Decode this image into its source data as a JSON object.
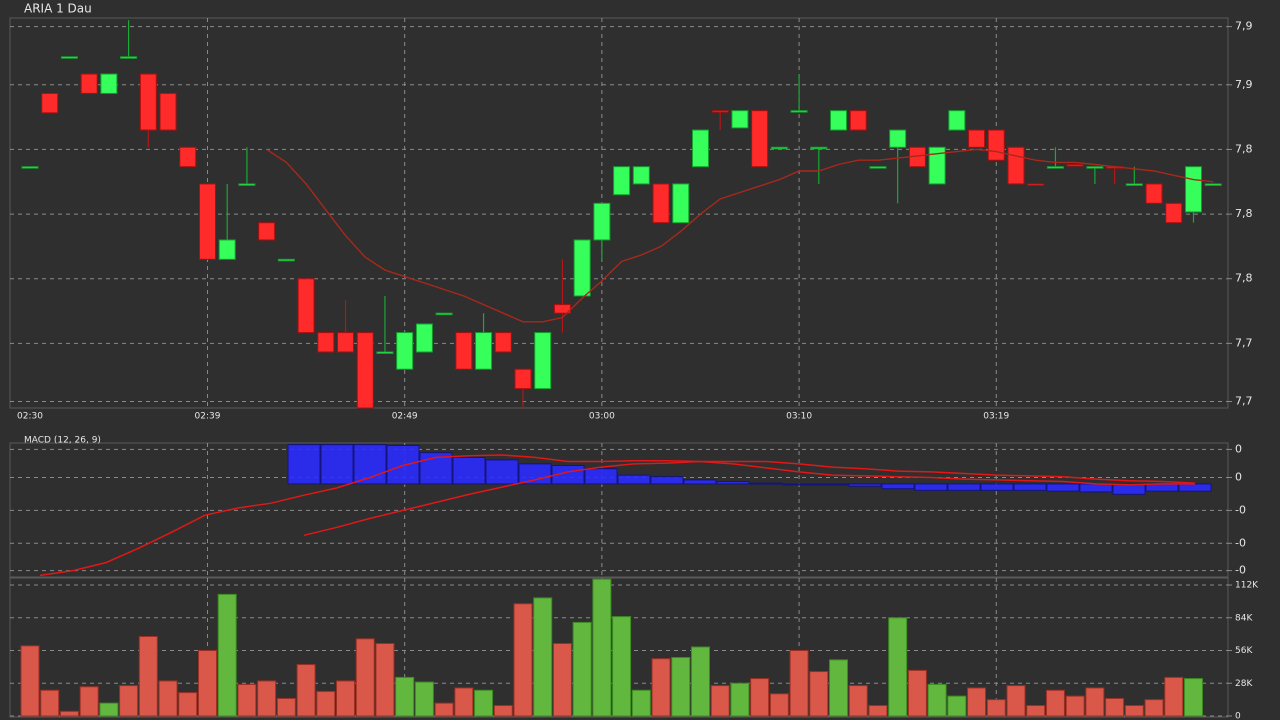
{
  "chart_data": [
    {
      "type": "candlestick",
      "title": "ARIA 1 Dau",
      "open": [
        7.822,
        7.856,
        7.873,
        7.865,
        7.856,
        7.873,
        7.865,
        7.856,
        7.831,
        7.814,
        7.779,
        7.814,
        7.796,
        7.779,
        7.77,
        7.745,
        7.745,
        7.745,
        7.736,
        7.728,
        7.736,
        7.754,
        7.745,
        7.728,
        7.745,
        7.728,
        7.719,
        7.758,
        7.762,
        7.788,
        7.809,
        7.814,
        7.814,
        7.796,
        7.822,
        7.848,
        7.84,
        7.848,
        7.831,
        7.848,
        7.831,
        7.839,
        7.848,
        7.822,
        7.831,
        7.831,
        7.814,
        7.839,
        7.839,
        7.839,
        7.831,
        7.814,
        7.822,
        7.823,
        7.822,
        7.822,
        7.814,
        7.814,
        7.805,
        7.801,
        7.814
      ],
      "high": [
        7.822,
        7.856,
        7.873,
        7.865,
        7.865,
        7.89,
        7.865,
        7.856,
        7.831,
        7.814,
        7.814,
        7.831,
        7.796,
        7.779,
        7.77,
        7.745,
        7.76,
        7.745,
        7.762,
        7.745,
        7.749,
        7.754,
        7.745,
        7.754,
        7.745,
        7.728,
        7.745,
        7.779,
        7.788,
        7.805,
        7.822,
        7.822,
        7.814,
        7.814,
        7.839,
        7.848,
        7.848,
        7.848,
        7.831,
        7.865,
        7.831,
        7.848,
        7.848,
        7.822,
        7.839,
        7.831,
        7.831,
        7.848,
        7.839,
        7.839,
        7.831,
        7.814,
        7.831,
        7.823,
        7.822,
        7.822,
        7.822,
        7.814,
        7.805,
        7.822,
        7.814
      ],
      "low": [
        7.822,
        7.847,
        7.873,
        7.856,
        7.856,
        7.873,
        7.831,
        7.839,
        7.822,
        7.779,
        7.779,
        7.814,
        7.788,
        7.779,
        7.745,
        7.736,
        7.736,
        7.71,
        7.736,
        7.728,
        7.736,
        7.754,
        7.728,
        7.728,
        7.736,
        7.71,
        7.719,
        7.745,
        7.762,
        7.779,
        7.809,
        7.814,
        7.796,
        7.796,
        7.822,
        7.839,
        7.84,
        7.822,
        7.831,
        7.848,
        7.814,
        7.839,
        7.839,
        7.822,
        7.805,
        7.822,
        7.814,
        7.839,
        7.831,
        7.825,
        7.814,
        7.814,
        7.822,
        7.823,
        7.814,
        7.814,
        7.814,
        7.805,
        7.796,
        7.796,
        7.814
      ],
      "close": [
        7.822,
        7.847,
        7.873,
        7.856,
        7.865,
        7.873,
        7.839,
        7.839,
        7.822,
        7.779,
        7.788,
        7.814,
        7.788,
        7.779,
        7.745,
        7.736,
        7.736,
        7.71,
        7.736,
        7.745,
        7.749,
        7.754,
        7.728,
        7.745,
        7.736,
        7.719,
        7.745,
        7.754,
        7.788,
        7.805,
        7.822,
        7.822,
        7.796,
        7.814,
        7.839,
        7.848,
        7.848,
        7.822,
        7.831,
        7.848,
        7.831,
        7.848,
        7.839,
        7.822,
        7.839,
        7.822,
        7.831,
        7.848,
        7.831,
        7.825,
        7.814,
        7.814,
        7.822,
        7.823,
        7.822,
        7.822,
        7.814,
        7.805,
        7.796,
        7.822,
        7.814
      ],
      "up": [
        true,
        false,
        true,
        false,
        true,
        true,
        false,
        false,
        false,
        false,
        true,
        true,
        false,
        true,
        false,
        false,
        false,
        false,
        true,
        true,
        true,
        true,
        false,
        true,
        false,
        false,
        true,
        false,
        true,
        true,
        true,
        true,
        false,
        true,
        true,
        false,
        true,
        false,
        true,
        true,
        true,
        true,
        false,
        true,
        true,
        false,
        true,
        true,
        false,
        false,
        false,
        false,
        true,
        false,
        true,
        false,
        true,
        false,
        false,
        true,
        true
      ],
      "up_color": "#36ff5c",
      "down_color": "#ff2a2a",
      "ma": {
        "color": "#a8281c",
        "values": [
          null,
          null,
          null,
          null,
          null,
          null,
          null,
          null,
          null,
          null,
          null,
          null,
          7.83,
          7.824,
          7.814,
          7.802,
          7.79,
          7.78,
          7.774,
          7.771,
          7.768,
          7.765,
          7.762,
          7.758,
          7.754,
          7.75,
          7.75,
          7.752,
          7.761,
          7.769,
          7.778,
          7.781,
          7.785,
          7.792,
          7.8,
          7.807,
          7.81,
          7.813,
          7.816,
          7.82,
          7.82,
          7.823,
          7.825,
          7.825,
          7.826,
          7.827,
          7.828,
          7.829,
          7.83,
          7.829,
          7.827,
          7.825,
          7.824,
          7.824,
          7.823,
          7.822,
          7.821,
          7.82,
          7.818,
          7.816,
          7.815
        ]
      },
      "ylim": [
        7.71,
        7.891
      ],
      "yticks": [
        {
          "value": 7.887,
          "label": "7,9"
        },
        {
          "value": 7.86,
          "label": "7,9"
        },
        {
          "value": 7.83,
          "label": "7,8"
        },
        {
          "value": 7.8,
          "label": "7,8"
        },
        {
          "value": 7.77,
          "label": "7,8"
        },
        {
          "value": 7.74,
          "label": "7,7"
        },
        {
          "value": 7.713,
          "label": "7,7"
        }
      ],
      "xticks": [
        {
          "value": 0,
          "label": "02:30"
        },
        {
          "value": 9,
          "label": "02:39"
        },
        {
          "value": 19,
          "label": "02:49"
        },
        {
          "value": 29,
          "label": "03:00"
        },
        {
          "value": 39,
          "label": "03:10"
        },
        {
          "value": 49,
          "label": "03:19"
        }
      ],
      "grid": true
    },
    {
      "type": "macd",
      "title": "MACD (12, 26, 9)",
      "histogram": {
        "color": "#2b2bff",
        "values": [
          null,
          null,
          null,
          null,
          null,
          null,
          null,
          null,
          0.0049,
          0.0049,
          0.0049,
          0.0048,
          0.0039,
          0.0033,
          0.003,
          0.0025,
          0.0023,
          0.0019,
          0.0011,
          0.0009,
          0.0005,
          0.0003,
          0.0001,
          -0.0001,
          -0.0001,
          -0.0003,
          -0.0006,
          -0.0008,
          -0.0008,
          -0.0008,
          -0.0008,
          -0.0009,
          -0.001,
          -0.0013,
          -0.0009,
          -0.0009
        ]
      },
      "series": [
        {
          "color": "#e01818",
          "values": [
            -0.0114,
            -0.0108,
            -0.0098,
            -0.008,
            -0.006,
            -0.0039,
            -0.003,
            -0.0024,
            -0.0014,
            -0.0005,
            0.0008,
            0.0023,
            0.0033,
            0.0035,
            0.0036,
            0.0033,
            0.0028,
            0.0028,
            0.0029,
            0.0029,
            0.0028,
            0.0025,
            0.002,
            0.0015,
            0.0011,
            0.001,
            0.0009,
            0.0008,
            0.0006,
            0.0005,
            0.0004,
            0.0003,
            0,
            -0.0001,
            0,
            0
          ]
        },
        {
          "color": "#e01818",
          "values": [
            null,
            null,
            null,
            null,
            null,
            null,
            null,
            null,
            -0.0064,
            -0.0054,
            -0.0043,
            -0.0033,
            -0.0023,
            -0.0013,
            -0.0004,
            0.0005,
            0.0015,
            0.0021,
            0.0025,
            0.0026,
            0.0028,
            0.0028,
            0.0028,
            0.0025,
            0.0021,
            0.0019,
            0.0016,
            0.0015,
            0.0013,
            0.0011,
            0.001,
            0.0009,
            0.0006,
            0.0004,
            0.0003,
            0.0001
          ]
        }
      ],
      "ylim": [
        -0.0116,
        0.0051
      ],
      "yticks": [
        {
          "value": 0.0043,
          "label": "0"
        },
        {
          "value": 0.0008,
          "label": "0"
        },
        {
          "value": -0.0033,
          "label": "-0"
        },
        {
          "value": -0.0074,
          "label": "-0"
        },
        {
          "value": -0.0108,
          "label": "-0"
        }
      ],
      "grid": true
    },
    {
      "type": "volume",
      "values": [
        60000,
        22000,
        4000,
        25000,
        11000,
        26000,
        68000,
        30000,
        20000,
        56000,
        104000,
        27000,
        30000,
        15000,
        44000,
        21000,
        30000,
        66000,
        62000,
        33000,
        29000,
        11000,
        24000,
        22000,
        9000,
        96000,
        101000,
        62000,
        80000,
        117000,
        85000,
        22000,
        49000,
        50000,
        59000,
        26000,
        28000,
        32000,
        19000,
        56000,
        38000,
        48000,
        26000,
        9000,
        84000,
        39000,
        27000,
        17000,
        24000,
        14000,
        26000,
        9000,
        22000,
        17000,
        24000,
        15000,
        9000,
        14000,
        33000,
        32000,
        0
      ],
      "up": [
        false,
        false,
        false,
        false,
        true,
        false,
        false,
        false,
        false,
        false,
        true,
        false,
        false,
        false,
        false,
        false,
        false,
        false,
        false,
        true,
        true,
        false,
        false,
        true,
        false,
        false,
        true,
        false,
        true,
        true,
        true,
        true,
        false,
        true,
        true,
        false,
        true,
        false,
        false,
        false,
        false,
        true,
        false,
        false,
        true,
        false,
        true,
        true,
        false,
        false,
        false,
        false,
        false,
        false,
        false,
        false,
        false,
        false,
        false,
        true,
        true
      ],
      "up_color": "#62b83e",
      "down_color": "#d9584a",
      "ylim": [
        0,
        118000
      ],
      "yticks": [
        0,
        {
          "value": 28000,
          "label": "28K"
        },
        {
          "value": 56000,
          "label": "56K"
        },
        {
          "value": 84000,
          "label": "84K"
        },
        {
          "value": 112000,
          "label": "112K"
        }
      ],
      "grid": true
    }
  ]
}
